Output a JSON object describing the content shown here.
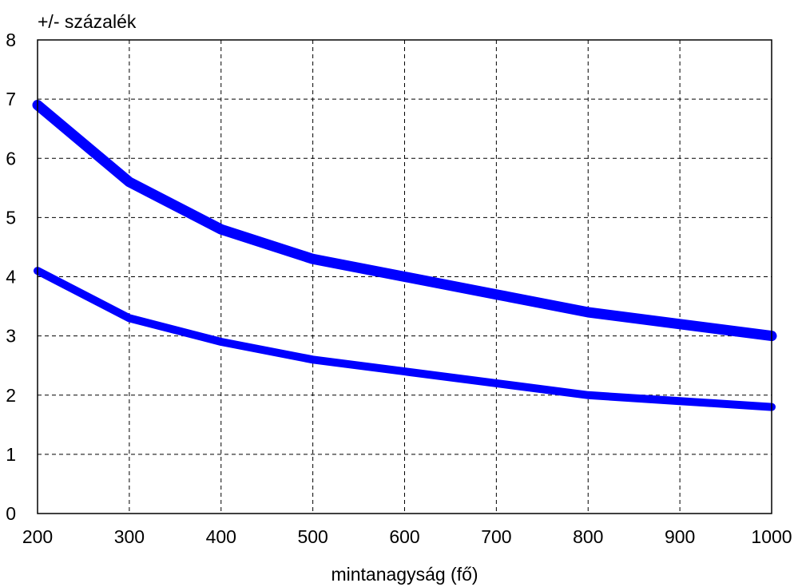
{
  "chart_data": {
    "type": "line",
    "ylabel": "+/- százalék",
    "xlabel": "mintanagyság (fő)",
    "xlim": [
      200,
      1000
    ],
    "ylim": [
      0,
      8
    ],
    "x_ticks": [
      "200",
      "300",
      "400",
      "500",
      "600",
      "700",
      "800",
      "900",
      "1000"
    ],
    "y_ticks": [
      "0",
      "1",
      "2",
      "3",
      "4",
      "5",
      "6",
      "7",
      "8"
    ],
    "grid": true,
    "grid_style": "dashed",
    "legend": "none",
    "x": [
      200,
      300,
      400,
      500,
      600,
      700,
      800,
      900,
      1000
    ],
    "series": [
      {
        "values": [
          6.9,
          5.6,
          4.8,
          4.3,
          4.0,
          3.7,
          3.4,
          3.2,
          3.0
        ],
        "color": "#0000ff"
      },
      {
        "values": [
          4.1,
          3.3,
          2.9,
          2.6,
          2.4,
          2.2,
          2.0,
          1.9,
          1.8
        ],
        "color": "#0000ff"
      }
    ]
  }
}
